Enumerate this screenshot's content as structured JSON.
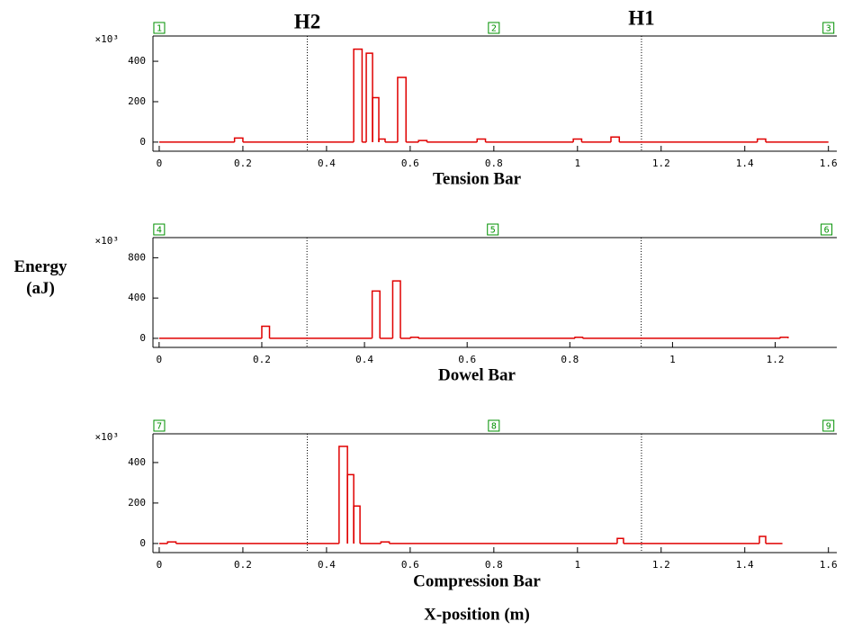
{
  "chart_data": [
    {
      "type": "histogram",
      "title": "Tension Bar",
      "y_scale_label": "×10³",
      "color": "#e00000",
      "bins": [
        0,
        0.18,
        0.2,
        0.465,
        0.485,
        0.495,
        0.51,
        0.525,
        0.54,
        0.57,
        0.59,
        0.62,
        0.64,
        0.76,
        0.78,
        0.99,
        1.01,
        1.08,
        1.1,
        1.43,
        1.45,
        1.6
      ],
      "counts": [
        0,
        20,
        0,
        460,
        0,
        440,
        220,
        15,
        0,
        320,
        0,
        8,
        0,
        15,
        0,
        15,
        0,
        25,
        0,
        15,
        0
      ],
      "xlim": [
        -0.015,
        1.62
      ],
      "xticks": [
        0,
        0.2,
        0.4,
        0.6,
        0.8,
        1,
        1.2,
        1.4,
        1.6
      ],
      "ylim": [
        -45,
        525
      ],
      "yticks": [
        0,
        200,
        400
      ],
      "vlines": [
        {
          "value": 0.354,
          "label": "H2"
        },
        {
          "value": 1.153,
          "label": "H1"
        }
      ],
      "sensors": [
        {
          "value": 0,
          "label": "1"
        },
        {
          "value": 0.8,
          "label": "2"
        },
        {
          "value": 1.6,
          "label": "3"
        }
      ]
    },
    {
      "type": "histogram",
      "title": "Dowel Bar",
      "y_scale_label": "×10³",
      "color": "#e00000",
      "bins": [
        0,
        0.2,
        0.215,
        0.415,
        0.43,
        0.455,
        0.47,
        0.49,
        0.505,
        0.81,
        0.825,
        1.21,
        1.225
      ],
      "counts": [
        0,
        120,
        0,
        470,
        0,
        570,
        0,
        10,
        0,
        10,
        0,
        10
      ],
      "xlim": [
        -0.012,
        1.32
      ],
      "xticks": [
        0,
        0.2,
        0.4,
        0.6,
        0.8,
        1,
        1.2
      ],
      "ylim": [
        -90,
        1000
      ],
      "yticks": [
        0,
        400,
        800
      ],
      "vlines": [
        0.288,
        0.939
      ],
      "sensors": [
        {
          "value": 0,
          "label": "4"
        },
        {
          "value": 0.65,
          "label": "5"
        },
        {
          "value": 1.3,
          "label": "6"
        }
      ]
    },
    {
      "type": "histogram",
      "title": "Compression Bar",
      "y_scale_label": "×10³",
      "color": "#e00000",
      "bins": [
        0,
        0.02,
        0.04,
        0.43,
        0.45,
        0.465,
        0.48,
        0.53,
        0.55,
        1.095,
        1.11,
        1.435,
        1.45,
        1.49
      ],
      "counts": [
        0,
        8,
        0,
        480,
        340,
        185,
        0,
        8,
        0,
        25,
        0,
        35,
        0
      ],
      "xlim": [
        -0.015,
        1.62
      ],
      "xticks": [
        0,
        0.2,
        0.4,
        0.6,
        0.8,
        1,
        1.2,
        1.4,
        1.6
      ],
      "ylim": [
        -45,
        542
      ],
      "yticks": [
        0,
        200,
        400
      ],
      "vlines": [
        0.354,
        1.153
      ],
      "sensors": [
        {
          "value": 0,
          "label": "7"
        },
        {
          "value": 0.8,
          "label": "8"
        },
        {
          "value": 1.6,
          "label": "9"
        }
      ]
    }
  ],
  "ylabel": "Energy (aJ)",
  "xlabel": "X-position (m)"
}
